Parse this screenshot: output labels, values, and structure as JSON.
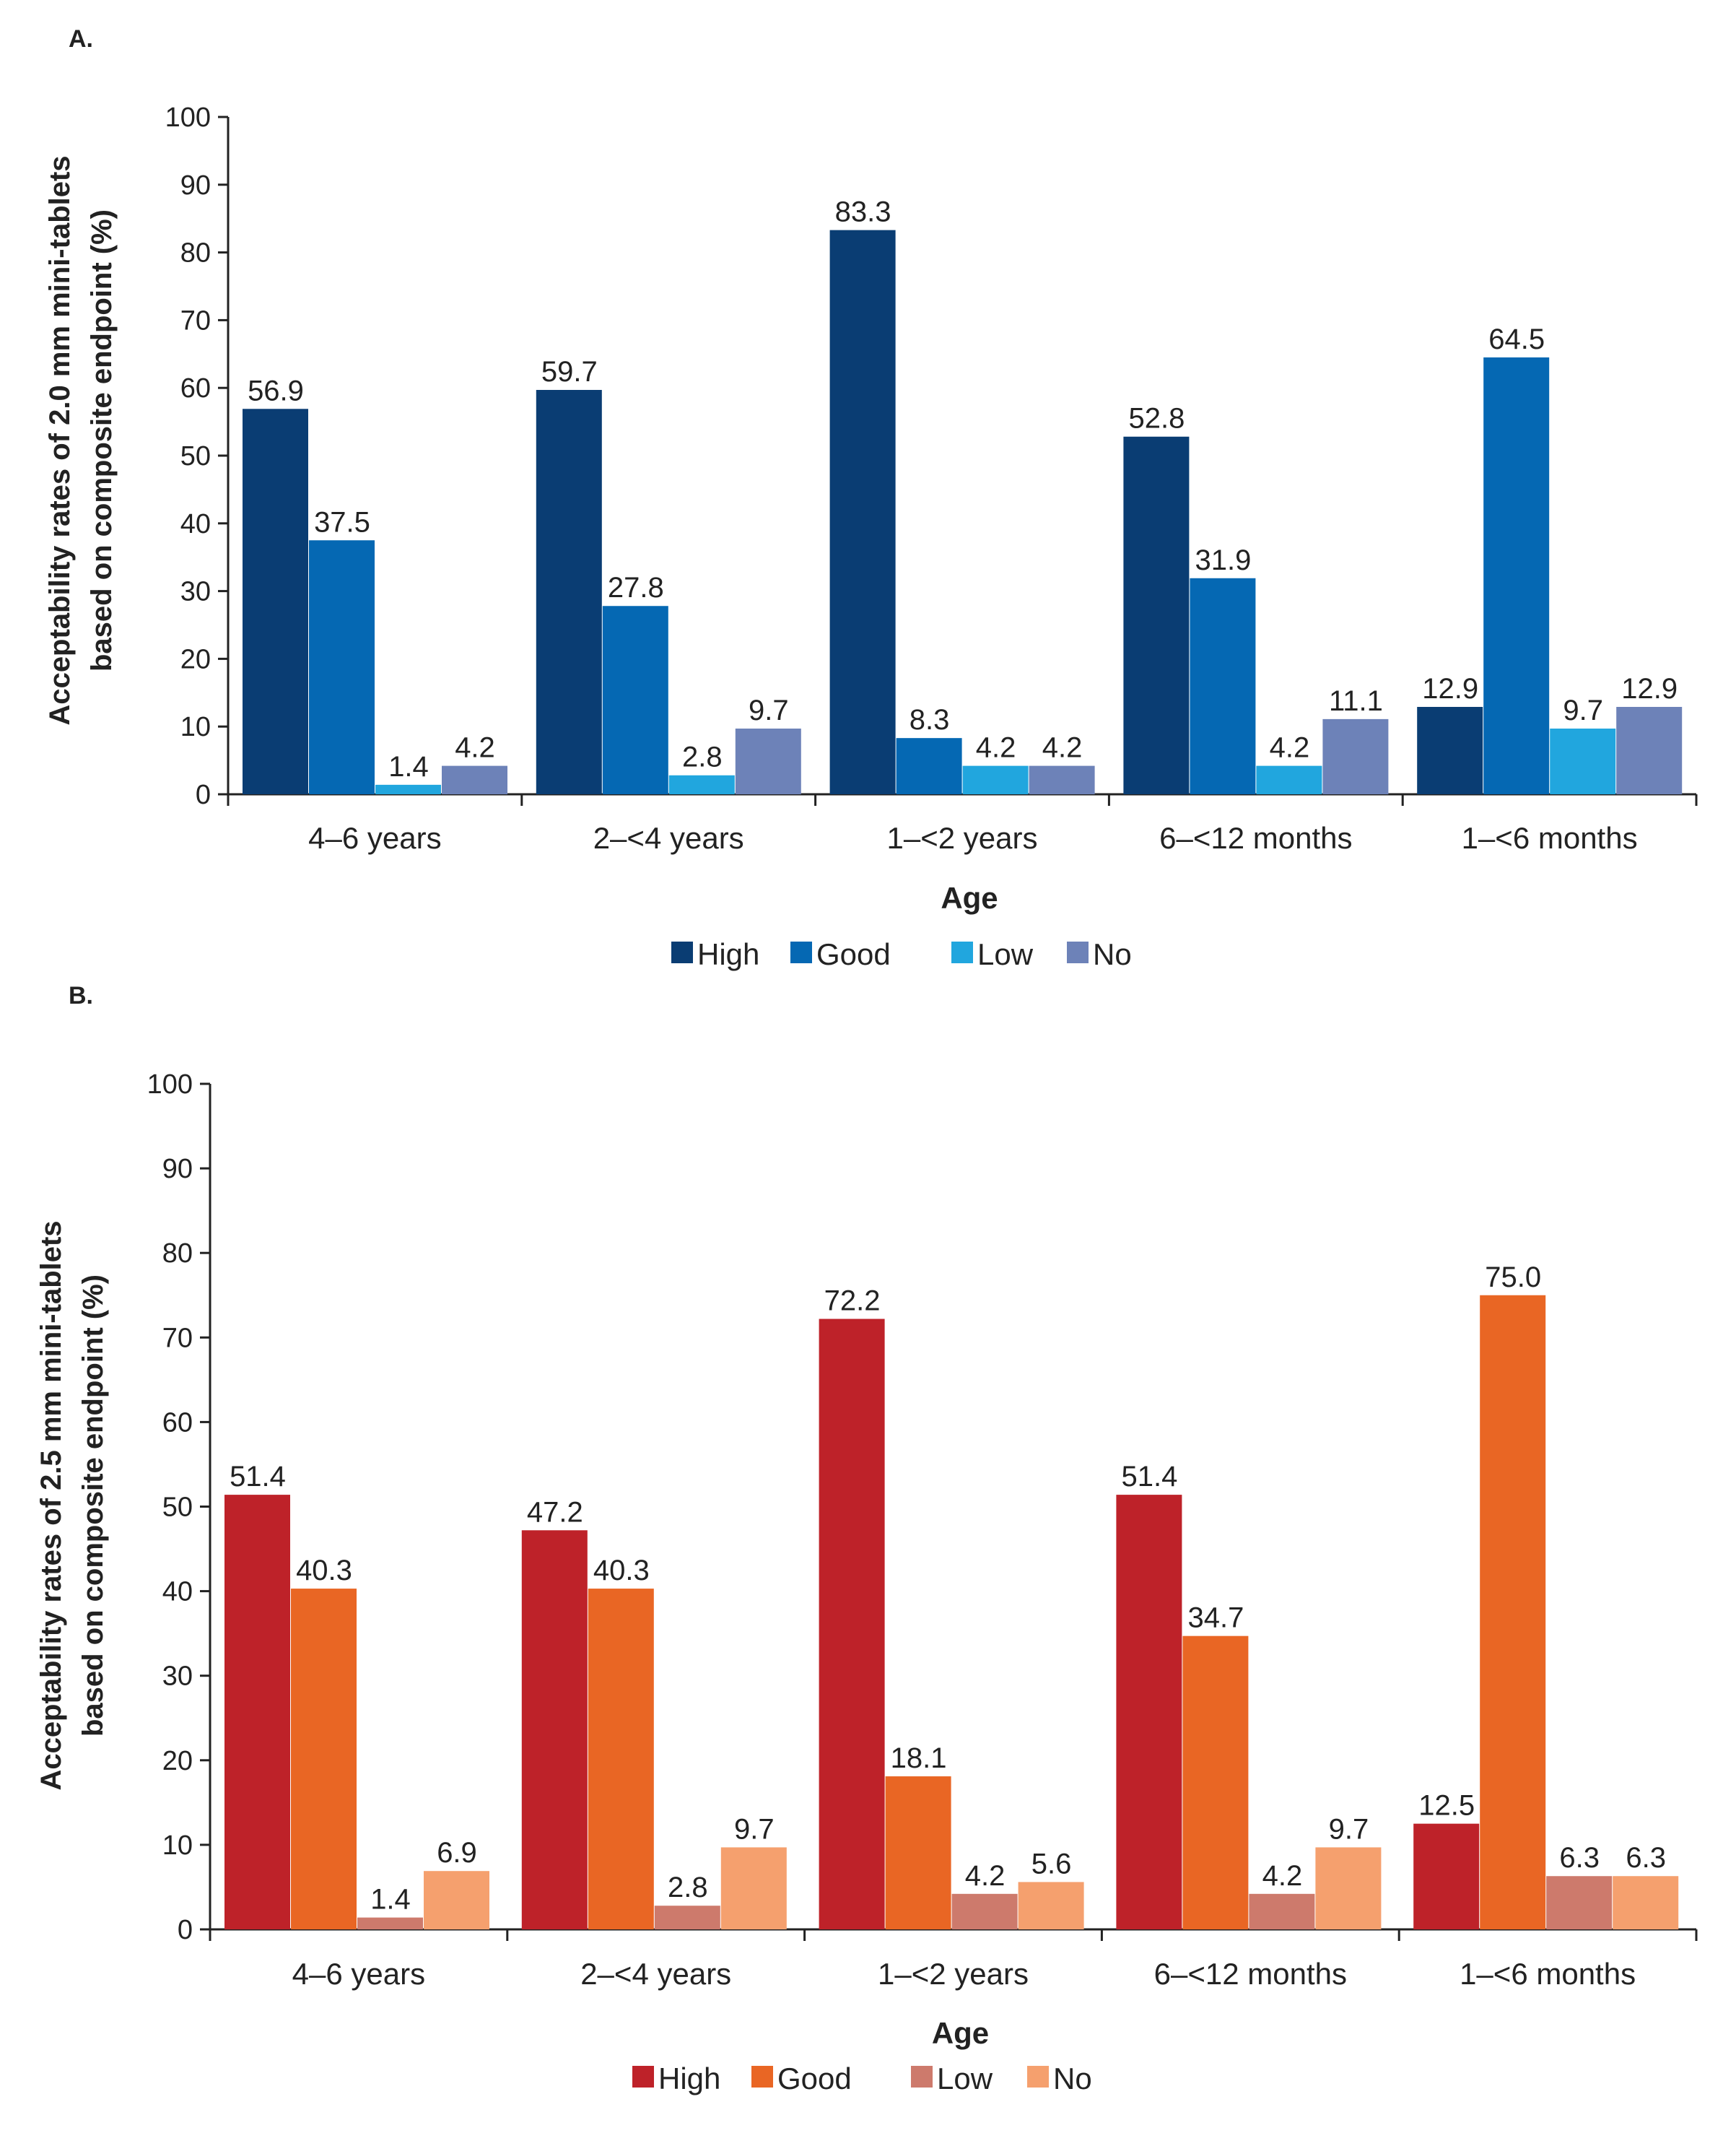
{
  "chart_data": [
    {
      "type": "bar",
      "panel_label": "A.",
      "categories": [
        "4–6 years",
        "2–<4 years",
        "1–<2 years",
        "6–<12 months",
        "1–<6 months"
      ],
      "series": [
        {
          "name": "High",
          "color": "#0a3d73",
          "values": [
            56.9,
            59.7,
            83.3,
            52.8,
            12.9
          ],
          "labels": [
            "56.9",
            "59.7",
            "83.3",
            "52.8",
            "12.9"
          ]
        },
        {
          "name": "Good",
          "color": "#0568b3",
          "values": [
            37.5,
            27.8,
            8.3,
            31.9,
            64.5
          ],
          "labels": [
            "37.5",
            "27.8",
            "8.3",
            "31.9",
            "64.5"
          ]
        },
        {
          "name": "Low",
          "color": "#21a6de",
          "values": [
            1.4,
            2.8,
            4.2,
            4.2,
            9.7
          ],
          "labels": [
            "1.4",
            "2.8",
            "4.2",
            "4.2",
            "9.7"
          ]
        },
        {
          "name": "No",
          "color": "#6d82b8",
          "values": [
            4.2,
            9.7,
            4.2,
            11.1,
            12.9
          ],
          "labels": [
            "4.2",
            "9.7",
            "4.2",
            "11.1",
            "12.9"
          ]
        }
      ],
      "ylabel_lines": [
        "Acceptability rates of 2.0 mm mini-tablets",
        "based on composite endpoint (%)"
      ],
      "xlabel": "Age",
      "ylim": [
        0,
        100
      ],
      "yticks": [
        "0",
        "10",
        "20",
        "30",
        "40",
        "50",
        "60",
        "70",
        "80",
        "90",
        "100"
      ],
      "legend_position": "bottom"
    },
    {
      "type": "bar",
      "panel_label": "B.",
      "categories": [
        "4–6 years",
        "2–<4 years",
        "1–<2 years",
        "6–<12 months",
        "1–<6 months"
      ],
      "series": [
        {
          "name": "High",
          "color": "#be2229",
          "values": [
            51.4,
            47.2,
            72.2,
            51.4,
            12.5
          ],
          "labels": [
            "51.4",
            "47.2",
            "72.2",
            "51.4",
            "12.5"
          ]
        },
        {
          "name": "Good",
          "color": "#e96624",
          "values": [
            40.3,
            40.3,
            18.1,
            34.7,
            75.0
          ],
          "labels": [
            "40.3",
            "40.3",
            "18.1",
            "34.7",
            "75.0"
          ]
        },
        {
          "name": "Low",
          "color": "#cd7a6c",
          "values": [
            1.4,
            2.8,
            4.2,
            4.2,
            6.3
          ],
          "labels": [
            "1.4",
            "2.8",
            "4.2",
            "4.2",
            "6.3"
          ]
        },
        {
          "name": "No",
          "color": "#f5a06e",
          "values": [
            6.9,
            9.7,
            5.6,
            9.7,
            6.3
          ],
          "labels": [
            "6.9",
            "9.7",
            "5.6",
            "9.7",
            "6.3"
          ]
        }
      ],
      "ylabel_lines": [
        "Acceptability rates of 2.5 mm mini-tablets",
        "based on composite endpoint (%)"
      ],
      "xlabel": "Age",
      "ylim": [
        0,
        100
      ],
      "yticks": [
        "0",
        "10",
        "20",
        "30",
        "40",
        "50",
        "60",
        "70",
        "80",
        "90",
        "100"
      ],
      "legend_position": "bottom"
    }
  ]
}
